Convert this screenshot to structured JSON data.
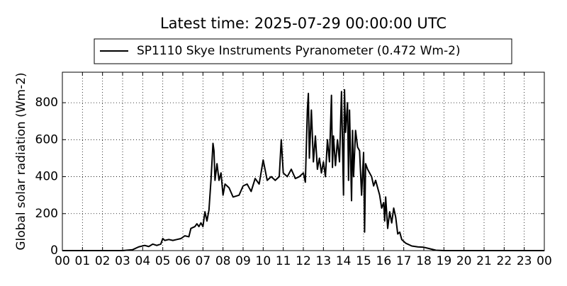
{
  "chart_data": {
    "type": "line",
    "title": "Latest time: 2025-07-29 00:00:00 UTC",
    "y_label": "Global solar radiation (Wm-2)",
    "x": [
      0,
      1,
      2,
      3,
      3.5,
      3.8,
      4.1,
      4.3,
      4.5,
      4.7,
      4.9,
      5.0,
      5.1,
      5.3,
      5.5,
      5.7,
      5.9,
      6.1,
      6.3,
      6.4,
      6.6,
      6.7,
      6.8,
      6.9,
      7.0,
      7.1,
      7.2,
      7.3,
      7.4,
      7.5,
      7.55,
      7.6,
      7.7,
      7.8,
      7.9,
      8.0,
      8.1,
      8.3,
      8.5,
      8.8,
      9.0,
      9.2,
      9.4,
      9.6,
      9.8,
      10.0,
      10.2,
      10.4,
      10.6,
      10.8,
      10.9,
      11.0,
      11.2,
      11.4,
      11.6,
      11.8,
      12.0,
      12.1,
      12.2,
      12.25,
      12.3,
      12.4,
      12.5,
      12.6,
      12.7,
      12.8,
      12.9,
      13.0,
      13.1,
      13.2,
      13.3,
      13.4,
      13.45,
      13.5,
      13.6,
      13.7,
      13.8,
      13.9,
      14.0,
      14.05,
      14.1,
      14.2,
      14.25,
      14.3,
      14.4,
      14.45,
      14.5,
      14.6,
      14.7,
      14.8,
      14.9,
      15.0,
      15.05,
      15.1,
      15.2,
      15.4,
      15.5,
      15.6,
      15.7,
      15.8,
      15.9,
      16.0,
      16.05,
      16.1,
      16.2,
      16.3,
      16.4,
      16.5,
      16.6,
      16.7,
      16.8,
      16.9,
      17.1,
      17.4,
      17.7,
      18.0,
      18.3,
      18.6,
      19.0,
      24
    ],
    "series": [
      {
        "name": "SP1110 Skye Instruments Pyranometer (0.472 Wm-2)",
        "color": "#000000",
        "values": [
          0,
          0,
          0,
          0,
          5,
          20,
          28,
          22,
          35,
          28,
          35,
          65,
          55,
          60,
          55,
          60,
          65,
          80,
          75,
          120,
          130,
          145,
          130,
          150,
          130,
          210,
          160,
          220,
          380,
          580,
          540,
          380,
          470,
          380,
          420,
          300,
          360,
          340,
          290,
          300,
          350,
          360,
          320,
          390,
          360,
          490,
          380,
          400,
          380,
          400,
          600,
          420,
          400,
          440,
          390,
          400,
          420,
          370,
          760,
          850,
          500,
          760,
          480,
          620,
          440,
          500,
          420,
          480,
          400,
          600,
          480,
          840,
          450,
          620,
          460,
          600,
          480,
          860,
          300,
          870,
          640,
          800,
          380,
          760,
          270,
          650,
          400,
          650,
          560,
          540,
          300,
          530,
          100,
          470,
          440,
          400,
          350,
          380,
          340,
          300,
          230,
          260,
          160,
          290,
          120,
          210,
          150,
          230,
          180,
          90,
          100,
          60,
          40,
          25,
          20,
          18,
          10,
          2,
          0,
          0
        ]
      }
    ],
    "xlim": [
      0,
      24
    ],
    "xticks": [
      {
        "value": 0,
        "label": "00"
      },
      {
        "value": 1,
        "label": "01"
      },
      {
        "value": 2,
        "label": "02"
      },
      {
        "value": 3,
        "label": "03"
      },
      {
        "value": 4,
        "label": "04"
      },
      {
        "value": 5,
        "label": "05"
      },
      {
        "value": 6,
        "label": "06"
      },
      {
        "value": 7,
        "label": "07"
      },
      {
        "value": 8,
        "label": "08"
      },
      {
        "value": 9,
        "label": "09"
      },
      10,
      11,
      12,
      13,
      14,
      15,
      16,
      17,
      18,
      19,
      20,
      21,
      22,
      23,
      {
        "value": 24,
        "label": "00"
      }
    ],
    "ylim": [
      0,
      965
    ],
    "yticks": [
      0,
      200,
      400,
      600,
      800
    ],
    "grid": true
  }
}
